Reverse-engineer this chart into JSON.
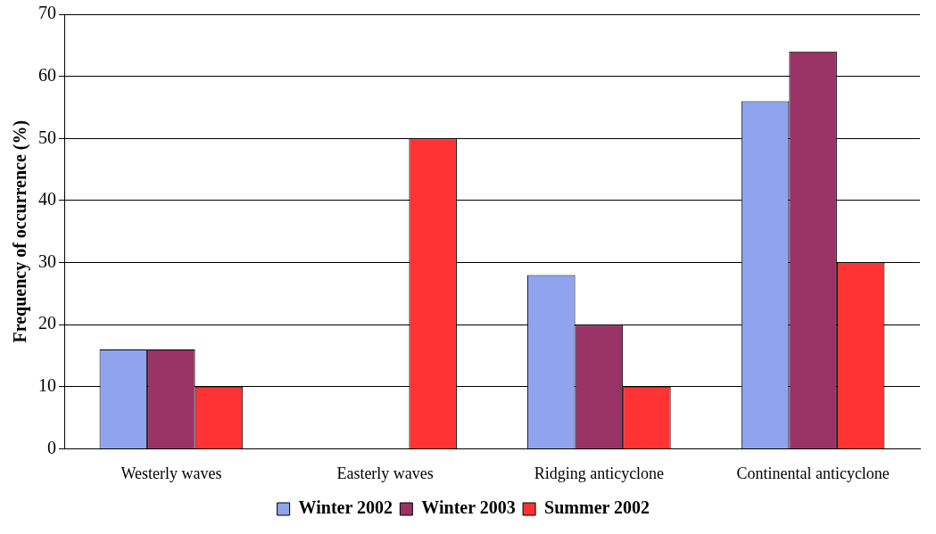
{
  "chart_data": {
    "type": "bar",
    "ylabel": "Frequency of occurrence (%)",
    "categories": [
      "Westerly waves",
      "Easterly waves",
      "Ridging anticyclone",
      "Continental anticyclone"
    ],
    "series": [
      {
        "name": "Winter 2002",
        "color": "#8fa3ee",
        "values": [
          16,
          0,
          28,
          56
        ]
      },
      {
        "name": "Winter 2003",
        "color": "#993366",
        "values": [
          16,
          0,
          20,
          64
        ]
      },
      {
        "name": "Summer 2002",
        "color": "#ff3333",
        "values": [
          10,
          50,
          10,
          30
        ]
      }
    ],
    "ylim": [
      0,
      70
    ],
    "yticks": [
      0,
      10,
      20,
      30,
      40,
      50,
      60,
      70
    ],
    "grid": "y",
    "legend": "bottom"
  }
}
